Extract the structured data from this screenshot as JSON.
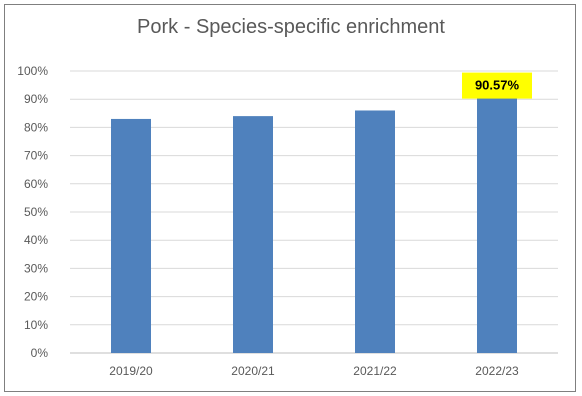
{
  "chart_data": {
    "type": "bar",
    "title": "Pork - Species-specific enrichment",
    "categories": [
      "2019/20",
      "2020/21",
      "2021/22",
      "2022/23"
    ],
    "values": [
      0.83,
      0.84,
      0.86,
      0.9057
    ],
    "ylim": [
      0,
      1
    ],
    "yticks": [
      "0%",
      "10%",
      "20%",
      "30%",
      "40%",
      "50%",
      "60%",
      "70%",
      "80%",
      "90%",
      "100%"
    ],
    "grid": true,
    "data_labels": [
      {
        "category": "2022/23",
        "text": "90.57%",
        "highlight": "#ffff00"
      }
    ],
    "colors": {
      "bar": "#4f81bd",
      "grid": "#d9d9d9",
      "axis": "#bfbfbf",
      "text": "#595959"
    }
  }
}
